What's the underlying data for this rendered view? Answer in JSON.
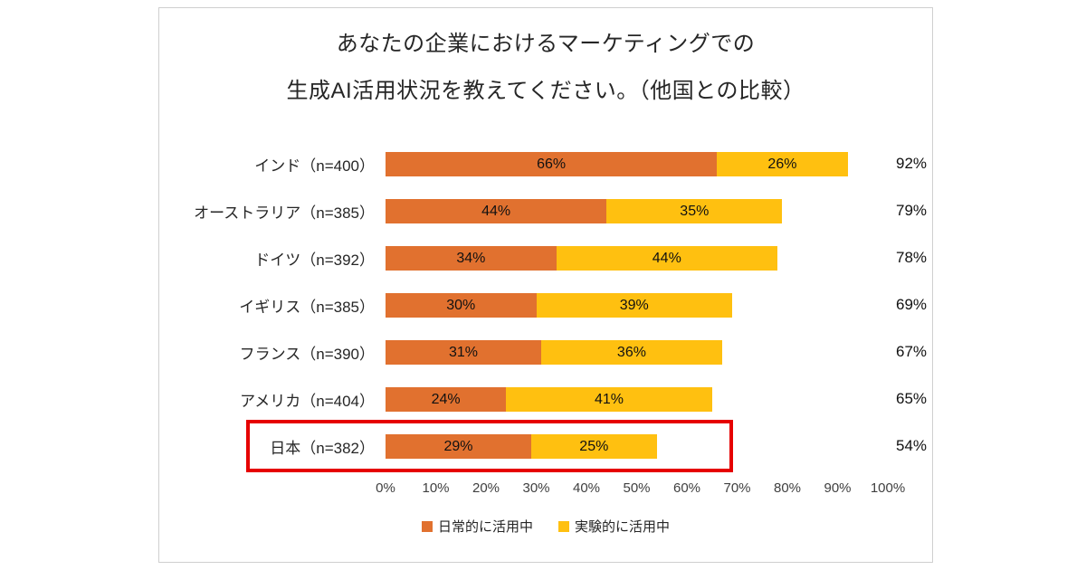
{
  "chart": {
    "title_line1": "あなたの企業におけるマーケティングでの",
    "title_line2": "生成AI活用状況を教えてください。（他国との比較）"
  },
  "chart_data": {
    "type": "bar",
    "orientation": "horizontal",
    "stacked": true,
    "title": "あなたの企業におけるマーケティングでの生成AI活用状況を教えてください。（他国との比較）",
    "categories": [
      "インド（n=400）",
      "オーストラリア（n=385）",
      "ドイツ（n=392）",
      "イギリス（n=385）",
      "フランス（n=390）",
      "アメリカ（n=404）",
      "日本（n=382）"
    ],
    "series": [
      {
        "name": "日常的に活用中",
        "color": "#e1712f",
        "values": [
          66,
          44,
          34,
          30,
          31,
          24,
          29
        ]
      },
      {
        "name": "実験的に活用中",
        "color": "#ffc010",
        "values": [
          26,
          35,
          44,
          39,
          36,
          41,
          25
        ]
      }
    ],
    "totals": [
      "92%",
      "79%",
      "78%",
      "69%",
      "67%",
      "65%",
      "54%"
    ],
    "x_ticks": [
      "0%",
      "10%",
      "20%",
      "30%",
      "40%",
      "50%",
      "60%",
      "70%",
      "80%",
      "90%",
      "100%"
    ],
    "xlim": [
      0,
      100
    ],
    "grid": false,
    "legend_position": "bottom",
    "highlighted_category": "日本（n=382）",
    "highlight_color": "#e60000"
  }
}
